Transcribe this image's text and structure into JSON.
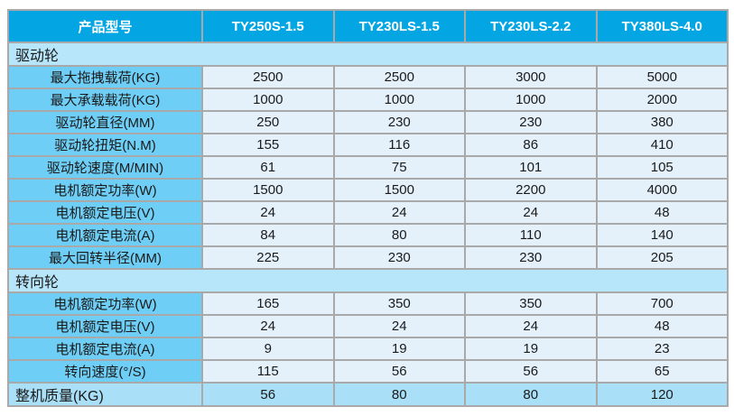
{
  "chart_data": {
    "type": "table",
    "header": [
      "产品型号",
      "TY250S-1.5",
      "TY230LS-1.5",
      "TY230LS-2.2",
      "TY380LS-4.0"
    ],
    "sections": [
      {
        "title": "驱动轮",
        "rows": [
          {
            "label": "最大拖拽载荷(KG)",
            "values": [
              "2500",
              "2500",
              "3000",
              "5000"
            ]
          },
          {
            "label": "最大承载载荷(KG)",
            "values": [
              "1000",
              "1000",
              "1000",
              "2000"
            ]
          },
          {
            "label": "驱动轮直径(MM)",
            "values": [
              "250",
              "230",
              "230",
              "380"
            ]
          },
          {
            "label": "驱动轮扭矩(N.M)",
            "values": [
              "155",
              "116",
              "86",
              "410"
            ]
          },
          {
            "label": "驱动轮速度(M/MIN)",
            "values": [
              "61",
              "75",
              "101",
              "105"
            ]
          },
          {
            "label": "电机额定功率(W)",
            "values": [
              "1500",
              "1500",
              "2200",
              "4000"
            ]
          },
          {
            "label": "电机额定电压(V)",
            "values": [
              "24",
              "24",
              "24",
              "48"
            ]
          },
          {
            "label": "电机额定电流(A)",
            "values": [
              "84",
              "80",
              "110",
              "140"
            ]
          },
          {
            "label": "最大回转半径(MM)",
            "values": [
              "225",
              "230",
              "230",
              "205"
            ]
          }
        ]
      },
      {
        "title": "转向轮",
        "rows": [
          {
            "label": "电机额定功率(W)",
            "values": [
              "165",
              "350",
              "350",
              "700"
            ]
          },
          {
            "label": "电机额定电压(V)",
            "values": [
              "24",
              "24",
              "24",
              "48"
            ]
          },
          {
            "label": "电机额定电流(A)",
            "values": [
              "9",
              "19",
              "19",
              "23"
            ]
          },
          {
            "label": "转向速度(°/S)",
            "values": [
              "115",
              "56",
              "56",
              "65"
            ]
          }
        ]
      }
    ],
    "footer": {
      "label": "整机质量(KG)",
      "values": [
        "56",
        "80",
        "80",
        "120"
      ]
    }
  },
  "colors": {
    "header_bg": "#03A5E2",
    "header_text": "#FFFFFF",
    "section_bg": "#B7E5F9",
    "label_bg": "#6FCEF5",
    "value_bg": "#E4F1FB",
    "footer_bg": "#A9DFF7",
    "border": "#A9A9A9",
    "text": "#1A1A1A"
  }
}
